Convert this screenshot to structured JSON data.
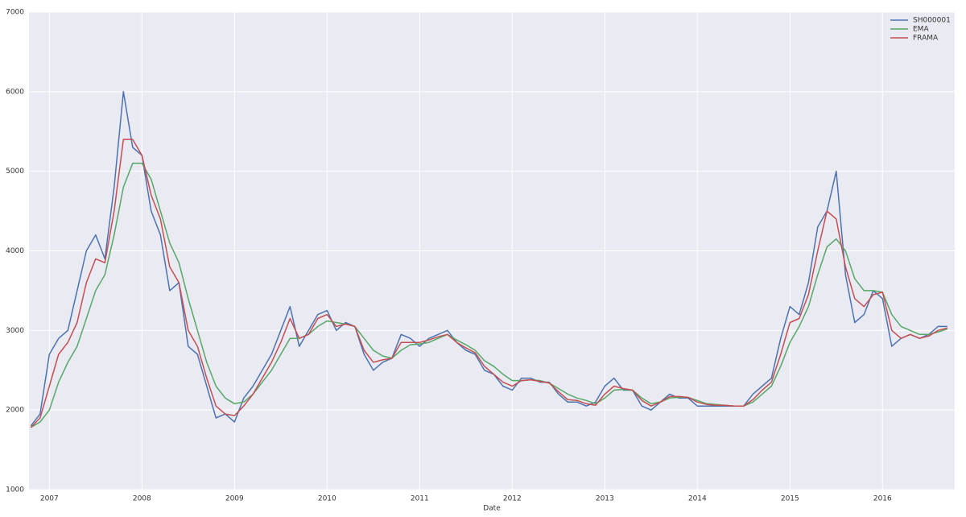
{
  "chart_data": {
    "type": "line",
    "x_label": "Date",
    "x": [
      2006.8,
      2006.9,
      2007.0,
      2007.1,
      2007.2,
      2007.3,
      2007.4,
      2007.5,
      2007.6,
      2007.7,
      2007.8,
      2007.9,
      2008.0,
      2008.1,
      2008.2,
      2008.3,
      2008.4,
      2008.5,
      2008.6,
      2008.7,
      2008.8,
      2008.9,
      2009.0,
      2009.1,
      2009.2,
      2009.3,
      2009.4,
      2009.5,
      2009.6,
      2009.7,
      2009.8,
      2009.9,
      2010.0,
      2010.1,
      2010.2,
      2010.3,
      2010.4,
      2010.5,
      2010.6,
      2010.7,
      2010.8,
      2010.9,
      2011.0,
      2011.1,
      2011.2,
      2011.3,
      2011.4,
      2011.5,
      2011.6,
      2011.7,
      2011.8,
      2011.9,
      2012.0,
      2012.1,
      2012.2,
      2012.3,
      2012.4,
      2012.5,
      2012.6,
      2012.7,
      2012.8,
      2012.9,
      2013.0,
      2013.1,
      2013.2,
      2013.3,
      2013.4,
      2013.5,
      2013.6,
      2013.7,
      2013.8,
      2013.9,
      2014.0,
      2014.1,
      2014.2,
      2014.3,
      2014.4,
      2014.5,
      2014.6,
      2014.7,
      2014.8,
      2014.9,
      2015.0,
      2015.1,
      2015.2,
      2015.3,
      2015.4,
      2015.5,
      2015.6,
      2015.7,
      2015.8,
      2015.9,
      2016.0,
      2016.1,
      2016.2,
      2016.3,
      2016.4,
      2016.5,
      2016.6,
      2016.7
    ],
    "series": [
      {
        "name": "SH000001",
        "color": "#4c72b0",
        "values": [
          1800,
          1950,
          2700,
          2900,
          3000,
          3500,
          4000,
          4200,
          3900,
          4800,
          6000,
          5300,
          5200,
          4500,
          4200,
          3500,
          3600,
          2800,
          2700,
          2300,
          1900,
          1950,
          1850,
          2150,
          2300,
          2500,
          2700,
          3000,
          3300,
          2800,
          3000,
          3200,
          3250,
          3000,
          3100,
          3050,
          2700,
          2500,
          2600,
          2650,
          2950,
          2900,
          2800,
          2900,
          2950,
          3000,
          2850,
          2750,
          2700,
          2500,
          2450,
          2300,
          2250,
          2400,
          2400,
          2350,
          2350,
          2200,
          2100,
          2100,
          2050,
          2100,
          2300,
          2400,
          2250,
          2250,
          2050,
          2000,
          2100,
          2200,
          2150,
          2150,
          2050,
          2050,
          2050,
          2050,
          2050,
          2050,
          2200,
          2300,
          2400,
          2900,
          3300,
          3200,
          3600,
          4300,
          4500,
          5000,
          3700,
          3100,
          3200,
          3500,
          3400,
          2800,
          2900,
          2950,
          2900,
          2950,
          3050,
          3050
        ]
      },
      {
        "name": "EMA",
        "color": "#55a868",
        "values": [
          1780,
          1850,
          2000,
          2350,
          2600,
          2800,
          3150,
          3500,
          3700,
          4200,
          4800,
          5100,
          5100,
          4900,
          4500,
          4100,
          3850,
          3400,
          3000,
          2600,
          2300,
          2150,
          2080,
          2100,
          2200,
          2350,
          2500,
          2700,
          2900,
          2900,
          2950,
          3050,
          3120,
          3100,
          3080,
          3050,
          2900,
          2750,
          2680,
          2650,
          2750,
          2820,
          2830,
          2850,
          2900,
          2950,
          2880,
          2820,
          2750,
          2620,
          2550,
          2450,
          2370,
          2370,
          2380,
          2370,
          2340,
          2270,
          2200,
          2150,
          2120,
          2080,
          2150,
          2250,
          2260,
          2250,
          2150,
          2080,
          2100,
          2150,
          2160,
          2160,
          2120,
          2080,
          2070,
          2060,
          2050,
          2050,
          2100,
          2200,
          2300,
          2550,
          2850,
          3050,
          3300,
          3700,
          4050,
          4150,
          4000,
          3650,
          3500,
          3500,
          3480,
          3200,
          3050,
          3000,
          2950,
          2950,
          2980,
          3020
        ]
      },
      {
        "name": "FRAMA",
        "color": "#c44e52",
        "values": [
          1780,
          1900,
          2300,
          2700,
          2850,
          3100,
          3600,
          3900,
          3850,
          4500,
          5400,
          5400,
          5200,
          4700,
          4400,
          3800,
          3600,
          3000,
          2800,
          2400,
          2050,
          1950,
          1930,
          2050,
          2200,
          2400,
          2600,
          2850,
          3150,
          2900,
          2950,
          3150,
          3200,
          3050,
          3080,
          3050,
          2750,
          2600,
          2630,
          2650,
          2850,
          2850,
          2850,
          2880,
          2920,
          2950,
          2850,
          2780,
          2720,
          2550,
          2450,
          2350,
          2300,
          2370,
          2380,
          2360,
          2340,
          2230,
          2130,
          2120,
          2080,
          2060,
          2200,
          2300,
          2270,
          2250,
          2120,
          2050,
          2100,
          2170,
          2170,
          2160,
          2100,
          2070,
          2060,
          2060,
          2050,
          2050,
          2130,
          2250,
          2350,
          2700,
          3100,
          3150,
          3450,
          4000,
          4500,
          4400,
          3800,
          3400,
          3300,
          3450,
          3480,
          3000,
          2900,
          2950,
          2900,
          2930,
          3000,
          3030
        ]
      }
    ],
    "xlim": [
      2006.78,
      2016.78
    ],
    "xticks": [
      2007,
      2008,
      2009,
      2010,
      2011,
      2012,
      2013,
      2014,
      2015,
      2016
    ],
    "ylim": [
      1000,
      7000
    ],
    "yticks": [
      1000,
      2000,
      3000,
      4000,
      5000,
      6000,
      7000
    ],
    "grid": true,
    "legend": "upper-right"
  }
}
